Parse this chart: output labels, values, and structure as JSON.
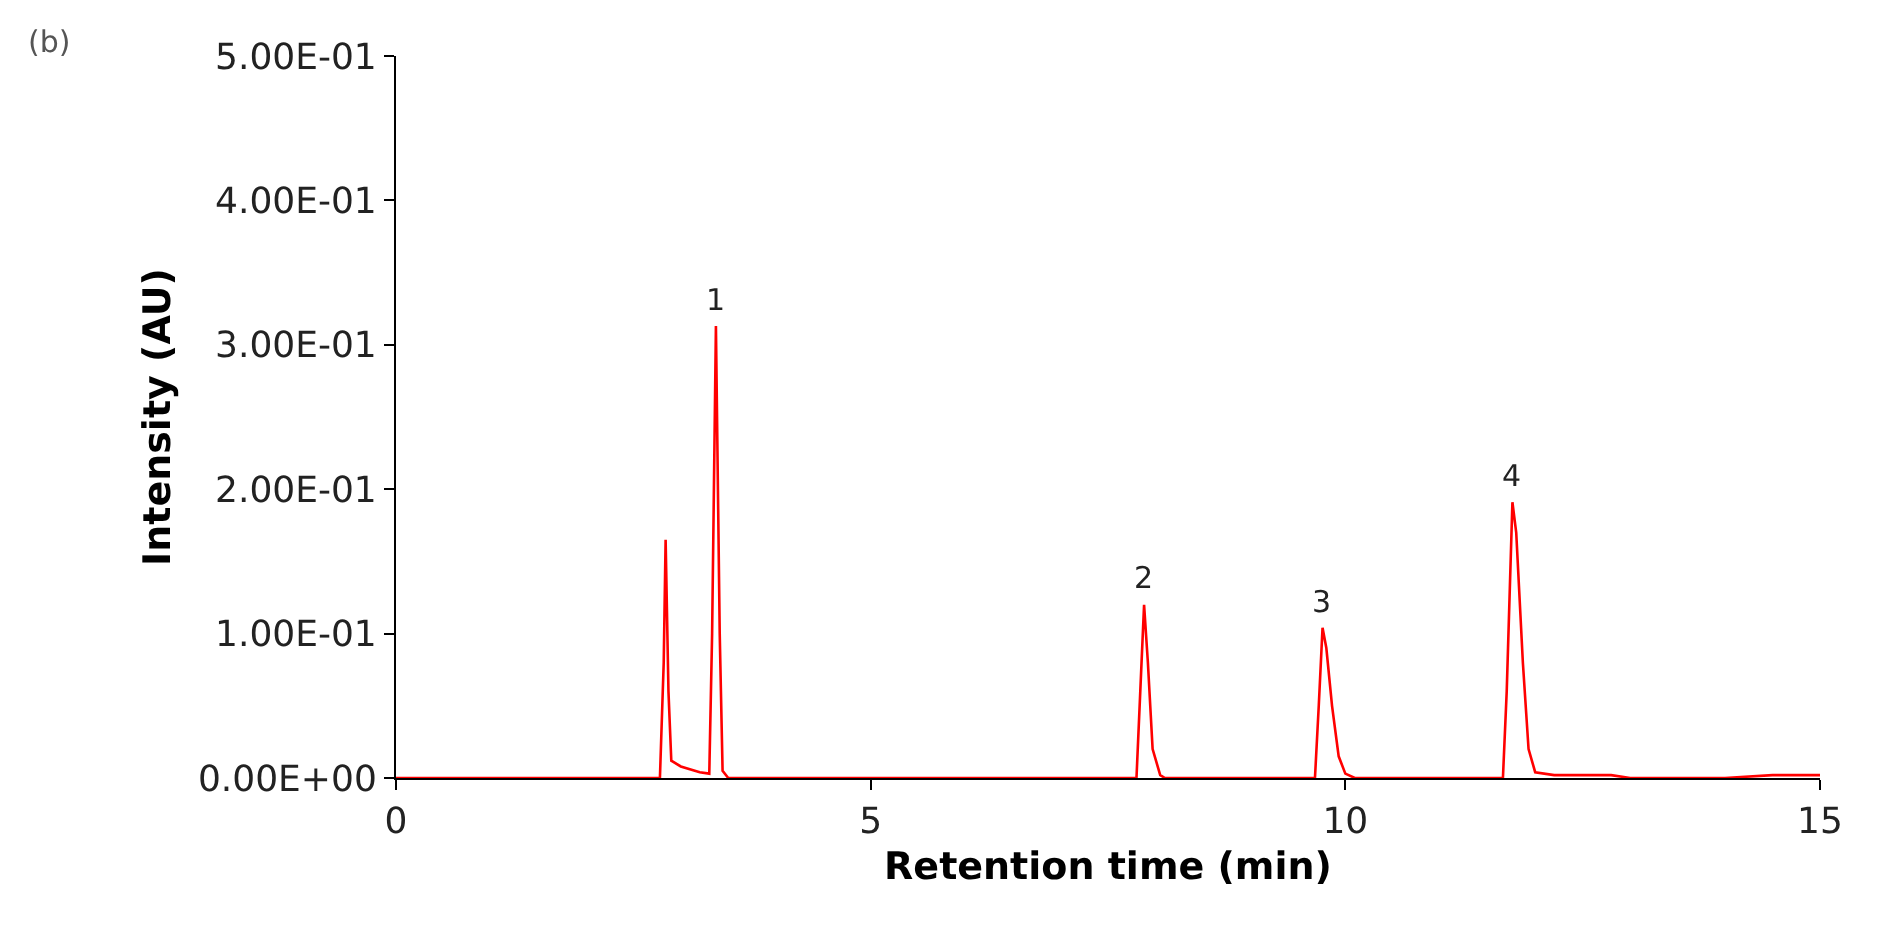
{
  "chart_data": {
    "type": "line",
    "xlabel": "Retention time (min)",
    "ylabel": "Intensity (AU)",
    "x": [
      0,
      2.78,
      2.82,
      2.84,
      2.87,
      2.9,
      3.0,
      3.2,
      3.3,
      3.33,
      3.37,
      3.41,
      3.44,
      3.5,
      7.8,
      7.84,
      7.88,
      7.92,
      7.97,
      8.05,
      8.1,
      9.68,
      9.72,
      9.76,
      9.8,
      9.86,
      9.93,
      10.0,
      10.1,
      11.66,
      11.7,
      11.76,
      11.8,
      11.87,
      11.93,
      12.0,
      12.2,
      12.8,
      13.0,
      14.0,
      14.5,
      15
    ],
    "series": [
      {
        "color": "#ff0000",
        "values": [
          0,
          0,
          0.08,
          0.165,
          0.06,
          0.012,
          0.008,
          0.004,
          0.003,
          0.1,
          0.313,
          0.1,
          0.005,
          0,
          0,
          0.06,
          0.12,
          0.08,
          0.02,
          0.002,
          0,
          0,
          0.05,
          0.104,
          0.09,
          0.05,
          0.015,
          0.003,
          0,
          0,
          0.06,
          0.191,
          0.17,
          0.08,
          0.02,
          0.004,
          0.002,
          0.002,
          0,
          0,
          0.002,
          0.002
        ]
      }
    ],
    "xlim": [
      0,
      15
    ],
    "xticks": [
      0,
      5,
      10,
      15
    ],
    "ylim": [
      0,
      0.5
    ],
    "yticks": [
      {
        "value": 0,
        "label": "0.00E+00"
      },
      {
        "value": 0.1,
        "label": "1.00E-01"
      },
      {
        "value": 0.2,
        "label": "2.00E-01"
      },
      {
        "value": 0.3,
        "label": "3.00E-01"
      },
      {
        "value": 0.4,
        "label": "4.00E-01"
      },
      {
        "value": 0.5,
        "label": "5.00E-01"
      }
    ],
    "marker": "none",
    "line_style": "solid",
    "annotations": [
      "(b)",
      {
        "text": "1",
        "x": 3.37,
        "y": 0.313
      },
      {
        "text": "2",
        "x": 7.88,
        "y": 0.12
      },
      {
        "text": "3",
        "x": 9.76,
        "y": 0.104
      },
      {
        "text": "4",
        "x": 11.76,
        "y": 0.191
      }
    ]
  }
}
